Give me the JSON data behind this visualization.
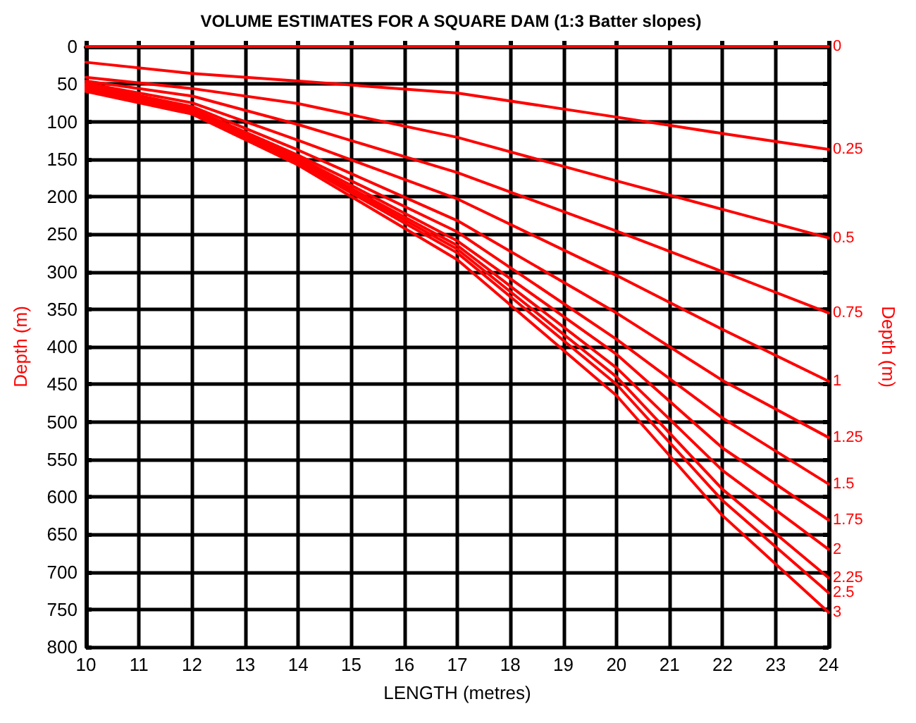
{
  "chart_data": {
    "type": "line",
    "title": "VOLUME ESTIMATES FOR A SQUARE DAM (1:3 Batter slopes)",
    "xlabel": "LENGTH (metres)",
    "ylabel": "Depth (m)",
    "y2label": "Depth (m)",
    "x": [
      10,
      12,
      14,
      17,
      20,
      22,
      24
    ],
    "series": [
      {
        "name": "0",
        "color": "#ff0000",
        "values": [
          0,
          0,
          0,
          0,
          0,
          0,
          0
        ]
      },
      {
        "name": "0.25",
        "color": "#ff0000",
        "values": [
          21,
          36,
          46,
          62,
          94,
          116,
          137
        ]
      },
      {
        "name": "0.5",
        "color": "#ff0000",
        "values": [
          41,
          56,
          76,
          121,
          179,
          217,
          255
        ]
      },
      {
        "name": "0.75",
        "color": "#ff0000",
        "values": [
          46,
          66,
          104,
          168,
          246,
          300,
          355
        ]
      },
      {
        "name": "1",
        "color": "#ff0000",
        "values": [
          49,
          75,
          125,
          203,
          305,
          377,
          446
        ]
      },
      {
        "name": "1.25",
        "color": "#ff0000",
        "values": [
          51,
          80,
          138,
          232,
          355,
          445,
          521
        ]
      },
      {
        "name": "1.5",
        "color": "#ff0000",
        "values": [
          53,
          83,
          145,
          247,
          390,
          495,
          583
        ]
      },
      {
        "name": "1.75",
        "color": "#ff0000",
        "values": [
          55,
          85,
          148,
          259,
          410,
          535,
          631
        ]
      },
      {
        "name": "2",
        "color": "#ff0000",
        "values": [
          56,
          86,
          151,
          265,
          428,
          565,
          670
        ]
      },
      {
        "name": "2.25",
        "color": "#ff0000",
        "values": [
          57,
          87,
          153,
          270,
          440,
          590,
          708
        ]
      },
      {
        "name": "2.5",
        "color": "#ff0000",
        "values": [
          58,
          88,
          155,
          275,
          450,
          605,
          728
        ]
      },
      {
        "name": "3",
        "color": "#ff0000",
        "values": [
          60,
          90,
          158,
          284,
          465,
          625,
          754
        ]
      }
    ],
    "xlim": [
      10,
      24
    ],
    "xticks": [
      10,
      11,
      12,
      13,
      14,
      15,
      16,
      17,
      18,
      19,
      20,
      21,
      22,
      23,
      24
    ],
    "ylim": [
      800,
      0
    ],
    "yticks": [
      0,
      50,
      100,
      150,
      200,
      250,
      300,
      350,
      400,
      450,
      500,
      550,
      600,
      650,
      700,
      750,
      800
    ],
    "grid": true,
    "legend": false,
    "marker": "none",
    "line_style": "solid"
  }
}
